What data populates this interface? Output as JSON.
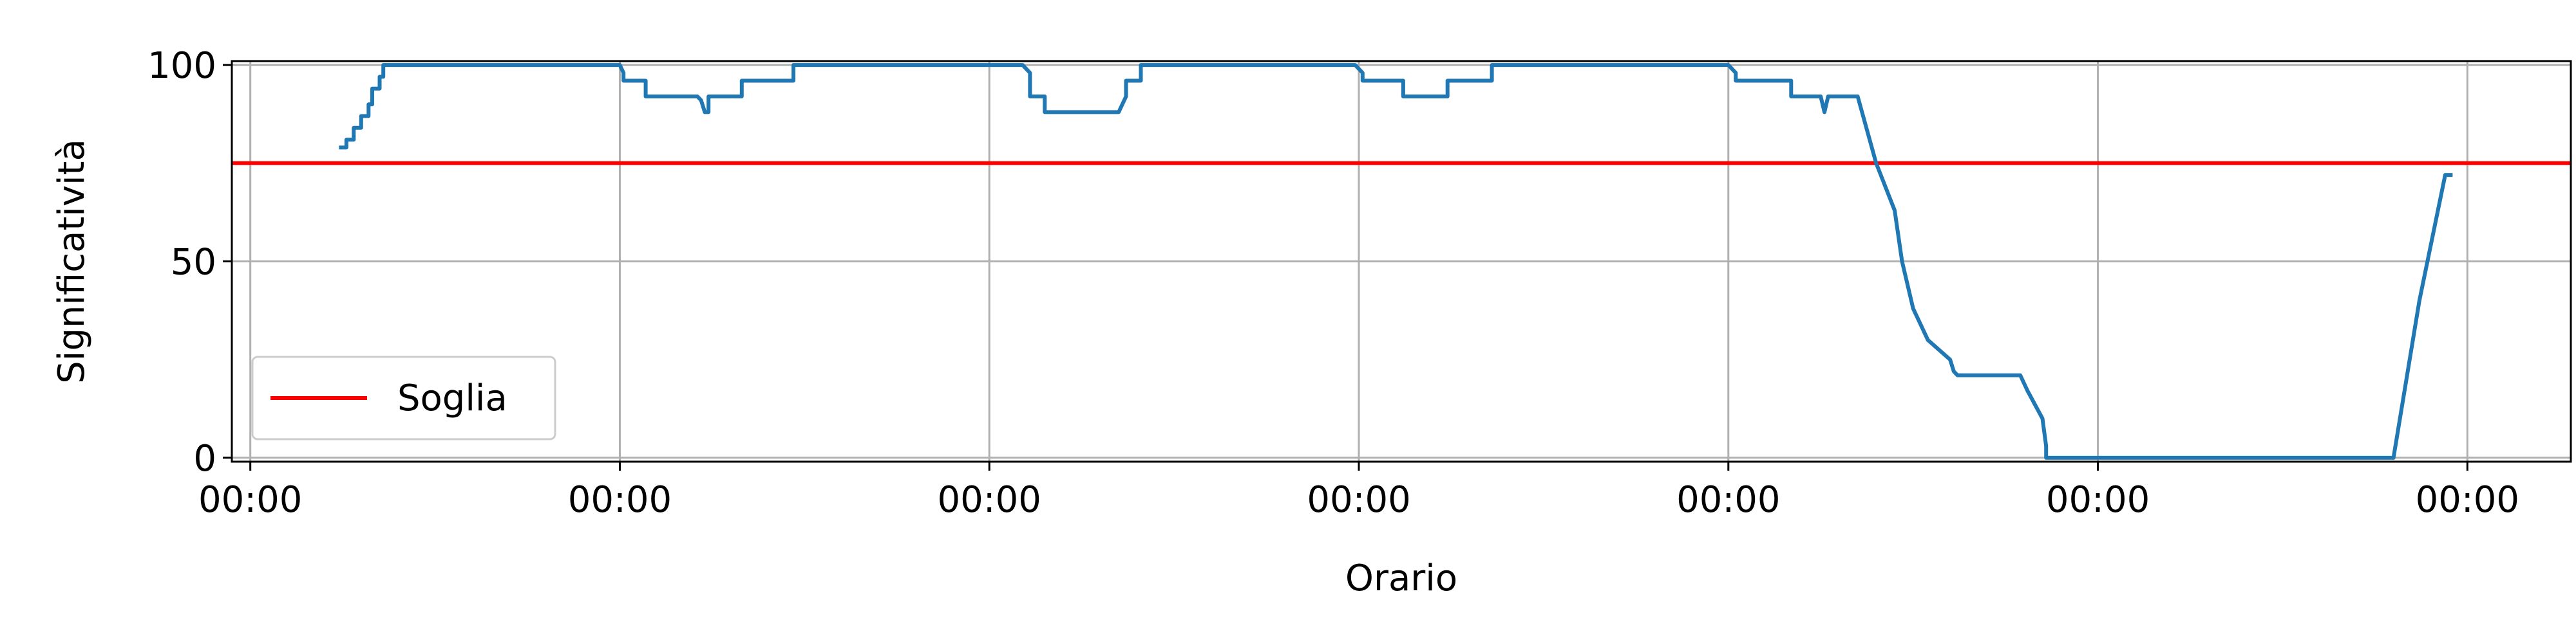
{
  "chart_data": {
    "type": "line",
    "title": "",
    "xlabel": "Orario",
    "ylabel": "Significatività",
    "x_tick_labels": [
      "00:00",
      "00:00",
      "00:00",
      "00:00",
      "00:00",
      "00:00",
      "00:00"
    ],
    "x_ticks": [
      0,
      1,
      2,
      3,
      4,
      5,
      6
    ],
    "xlim": [
      -0.05,
      6.28
    ],
    "y_ticks": [
      0,
      50,
      100
    ],
    "y_tick_labels": [
      "0",
      "50",
      "100"
    ],
    "ylim": [
      -1,
      101
    ],
    "grid": true,
    "legend_position": "lower-left",
    "colors": {
      "series": "#1f77b4",
      "threshold": "#ff0000",
      "grid": "#b0b0b0"
    },
    "threshold": {
      "name": "Soglia",
      "value": 75
    },
    "series": [
      {
        "x": [
          0.24,
          0.26,
          0.26,
          0.28,
          0.28,
          0.3,
          0.3,
          0.32,
          0.32,
          0.33,
          0.33,
          0.35,
          0.35,
          0.36,
          0.36,
          0.37,
          0.37,
          1.0,
          1.01,
          1.01,
          1.07,
          1.07,
          1.21,
          1.22,
          1.23,
          1.24,
          1.24,
          1.33,
          1.33,
          1.47,
          1.47,
          2.09,
          2.11,
          2.11,
          2.15,
          2.15,
          2.35,
          2.37,
          2.37,
          2.41,
          2.41,
          2.99,
          3.01,
          3.01,
          3.12,
          3.12,
          3.24,
          3.24,
          3.36,
          3.36,
          4.0,
          4.02,
          4.02,
          4.17,
          4.17,
          4.25,
          4.26,
          4.27,
          4.28,
          4.28,
          4.35,
          4.4,
          4.45,
          4.47,
          4.5,
          4.54,
          4.6,
          4.61,
          4.62,
          4.63,
          4.63,
          4.79,
          4.81,
          4.81,
          4.85,
          4.86,
          4.86,
          5.8,
          5.87,
          5.94,
          5.96
        ],
        "y": [
          79,
          79,
          81,
          81,
          84,
          84,
          87,
          87,
          90,
          90,
          94,
          94,
          97,
          97,
          100,
          100,
          100,
          100,
          98,
          96,
          96,
          92,
          92,
          91,
          88,
          88,
          92,
          92,
          96,
          96,
          100,
          100,
          98,
          92,
          92,
          88,
          88,
          92,
          96,
          96,
          100,
          100,
          98,
          96,
          96,
          92,
          92,
          96,
          96,
          100,
          100,
          98,
          96,
          96,
          92,
          92,
          88,
          92,
          92,
          92,
          92,
          75,
          63,
          50,
          38,
          30,
          25,
          22,
          21,
          21,
          21,
          21,
          17,
          17,
          10,
          3,
          0,
          0,
          40,
          72,
          72
        ]
      }
    ]
  }
}
